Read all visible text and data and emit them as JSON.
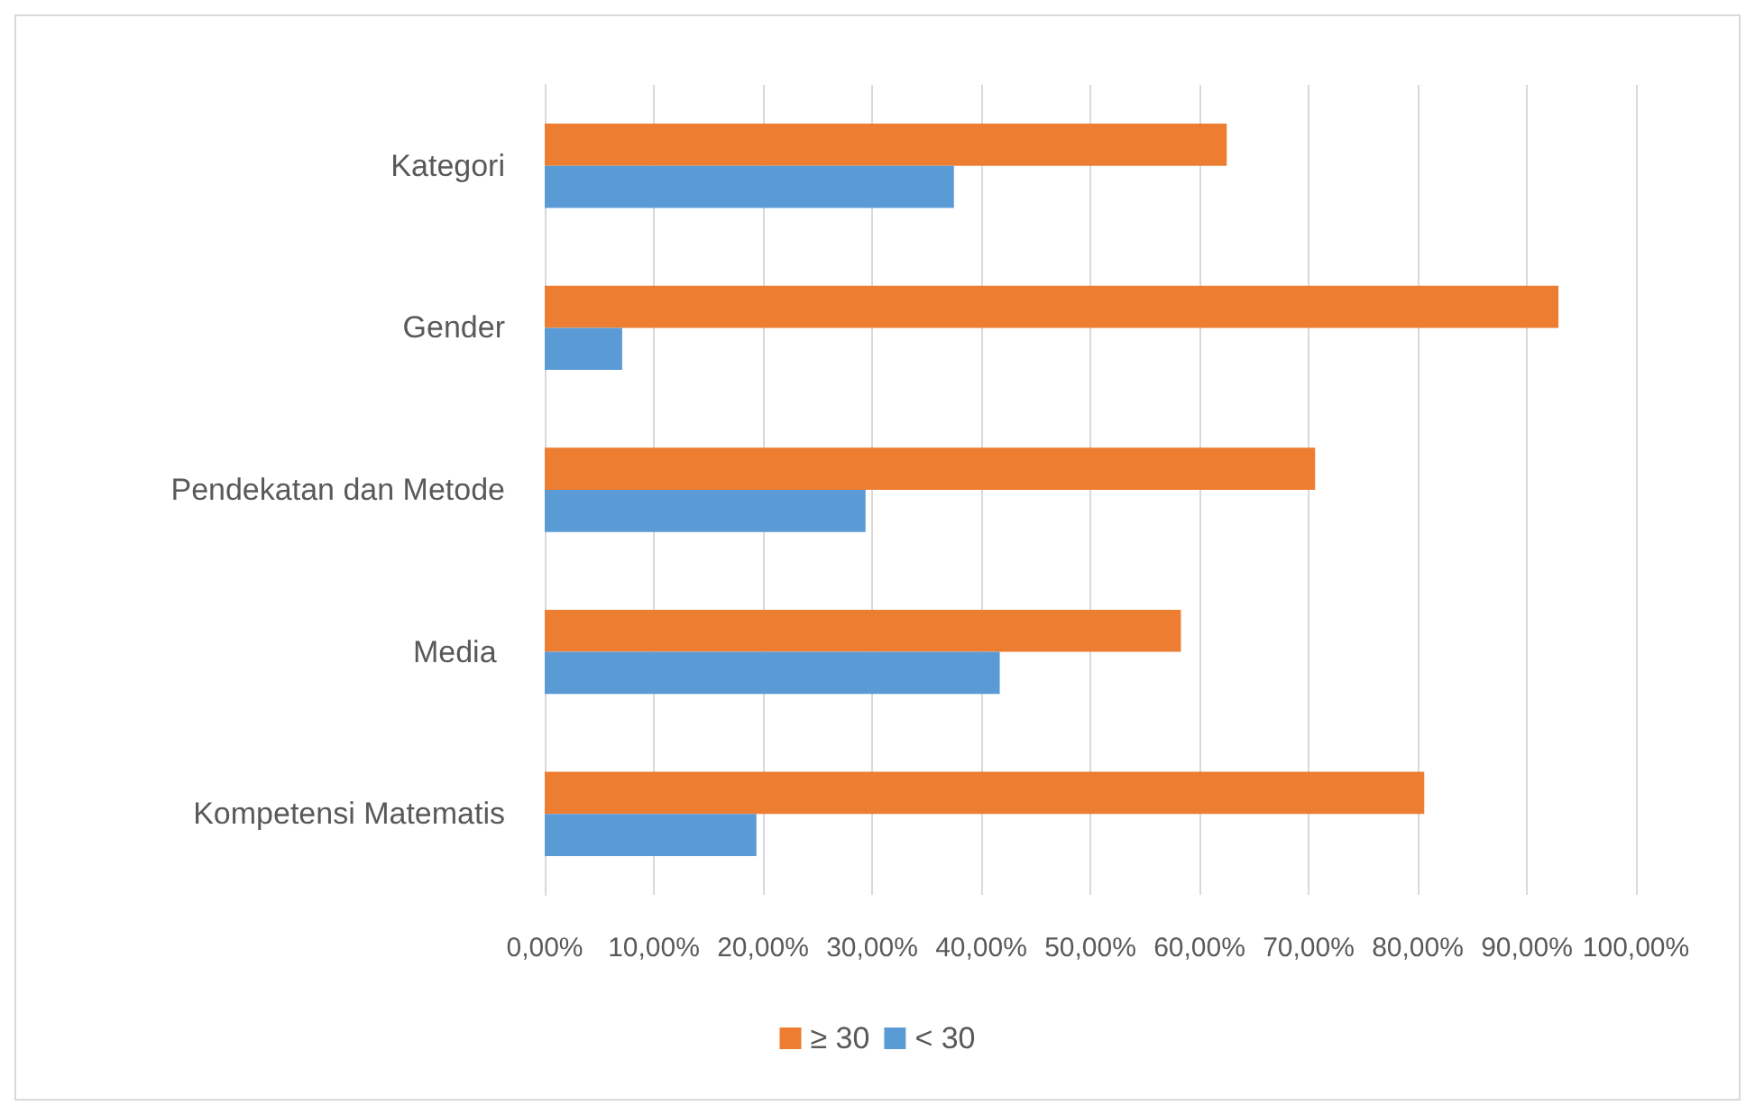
{
  "chart_data": {
    "type": "bar",
    "orientation": "horizontal",
    "categories": [
      "Kategori",
      "Gender",
      "Pendekatan dan Metode",
      "Media ",
      "Kompetensi Matematis"
    ],
    "series": [
      {
        "name": "≥ 30",
        "color": "#ed7d31",
        "values": [
          62.5,
          92.9,
          70.6,
          58.3,
          80.6
        ]
      },
      {
        "name": "< 30",
        "color": "#5b9bd5",
        "values": [
          37.5,
          7.1,
          29.4,
          41.7,
          19.4
        ]
      }
    ],
    "xlim": [
      0,
      100
    ],
    "xticks": [
      {
        "value": 0,
        "label": "0,00%"
      },
      {
        "value": 10,
        "label": "10,00%"
      },
      {
        "value": 20,
        "label": "20,00%"
      },
      {
        "value": 30,
        "label": "30,00%"
      },
      {
        "value": 40,
        "label": "40,00%"
      },
      {
        "value": 50,
        "label": "50,00%"
      },
      {
        "value": 60,
        "label": "60,00%"
      },
      {
        "value": 70,
        "label": "70,00%"
      },
      {
        "value": 80,
        "label": "80,00%"
      },
      {
        "value": 90,
        "label": "90,00%"
      },
      {
        "value": 100,
        "label": "100,00%"
      }
    ],
    "grid": "x",
    "legend": "bottom"
  }
}
